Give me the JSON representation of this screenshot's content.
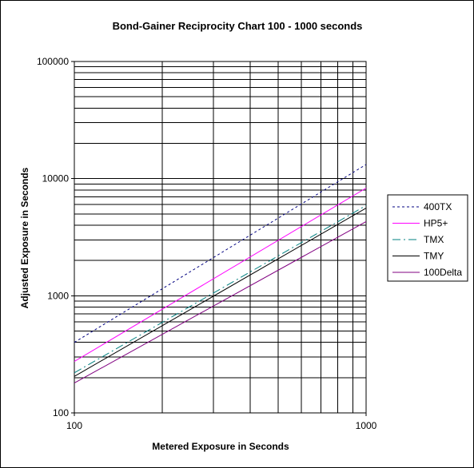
{
  "chart_data": {
    "type": "line",
    "title": "Bond-Gainer Reciprocity Chart 100 - 1000 seconds",
    "xlabel": "Metered Exposure in Seconds",
    "ylabel": "Adjusted Exposure in Seconds",
    "xscale": "log",
    "yscale": "log",
    "xlim": [
      100,
      1000
    ],
    "ylim": [
      100,
      100000
    ],
    "x_ticks": [
      100,
      1000
    ],
    "x_tick_labels": [
      "100",
      "1000"
    ],
    "y_ticks": [
      100,
      1000,
      10000,
      100000
    ],
    "y_tick_labels": [
      "100",
      "1000",
      "10000",
      "100000"
    ],
    "grid": "major and minor",
    "legend_position": "right",
    "x": [
      100,
      1000
    ],
    "series": [
      {
        "name": "400TX",
        "values": [
          400,
          13200
        ],
        "color": "#000080",
        "dash": "dotted"
      },
      {
        "name": "HP5+",
        "values": [
          275,
          8300
        ],
        "color": "#ff00ff",
        "dash": "solid"
      },
      {
        "name": "TMX",
        "values": [
          220,
          5900
        ],
        "color": "#008080",
        "dash": "dash-dot"
      },
      {
        "name": "TMY",
        "values": [
          205,
          5600
        ],
        "color": "#000000",
        "dash": "solid"
      },
      {
        "name": "100Delta",
        "values": [
          180,
          4300
        ],
        "color": "#800080",
        "dash": "solid"
      }
    ]
  }
}
